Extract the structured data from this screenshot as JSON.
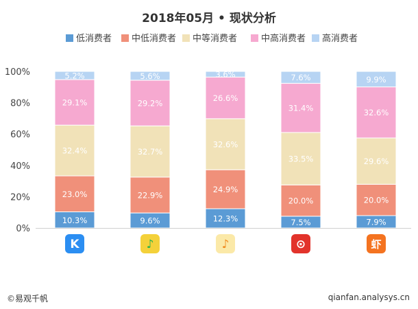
{
  "chart_data": {
    "type": "bar",
    "stacked": true,
    "title": "2018年05月 • 现状分析",
    "ylim": [
      0,
      100
    ],
    "y_ticks": [
      "0%",
      "20%",
      "40%",
      "60%",
      "80%",
      "100%"
    ],
    "legend_position": "top",
    "categories": [
      "酷狗音乐",
      "QQ音乐",
      "酷我音乐",
      "网易云音乐",
      "虾米音乐"
    ],
    "series": [
      {
        "name": "低消费者",
        "color": "#5b9bd5",
        "values": [
          10.3,
          9.6,
          12.3,
          7.5,
          7.9
        ],
        "labels": [
          "10.3%",
          "9.6%",
          "12.3%",
          "7.5%",
          "7.9%"
        ]
      },
      {
        "name": "中低消费者",
        "color": "#f0907a",
        "values": [
          23.0,
          22.9,
          24.9,
          20.0,
          20.0
        ],
        "labels": [
          "23.0%",
          "22.9%",
          "24.9%",
          "20.0%",
          "20.0%"
        ]
      },
      {
        "name": "中等消费者",
        "color": "#f1e2b8",
        "values": [
          32.4,
          32.7,
          32.6,
          33.5,
          29.6
        ],
        "labels": [
          "32.4%",
          "32.7%",
          "32.6%",
          "33.5%",
          "29.6%"
        ]
      },
      {
        "name": "中高消费者",
        "color": "#f6a9d0",
        "values": [
          29.1,
          29.2,
          26.6,
          31.4,
          32.6
        ],
        "labels": [
          "29.1%",
          "29.2%",
          "26.6%",
          "31.4%",
          "32.6%"
        ]
      },
      {
        "name": "高消费者",
        "color": "#b7d4f3",
        "values": [
          5.2,
          5.6,
          3.6,
          7.6,
          9.9
        ],
        "labels": [
          "5.2%",
          "5.6%",
          "3.6%",
          "7.6%",
          "9.9%"
        ]
      }
    ]
  },
  "app_icons": [
    {
      "name": "kugou-icon",
      "glyph": "K",
      "bg": "#2b8ef2",
      "fg": "#ffffff"
    },
    {
      "name": "qqmusic-icon",
      "glyph": "♪",
      "bg": "#f4d13a",
      "fg": "#2bb24c"
    },
    {
      "name": "kuwo-icon",
      "glyph": "♪",
      "bg": "#fbe9a8",
      "fg": "#f08a1c"
    },
    {
      "name": "netease-icon",
      "glyph": "⊙",
      "bg": "#e2332b",
      "fg": "#ffffff"
    },
    {
      "name": "xiami-icon",
      "glyph": "虾",
      "bg": "#f47320",
      "fg": "#ffffff"
    }
  ],
  "footer": {
    "left": "©易观千帆",
    "right": "qianfan.analysys.cn"
  }
}
